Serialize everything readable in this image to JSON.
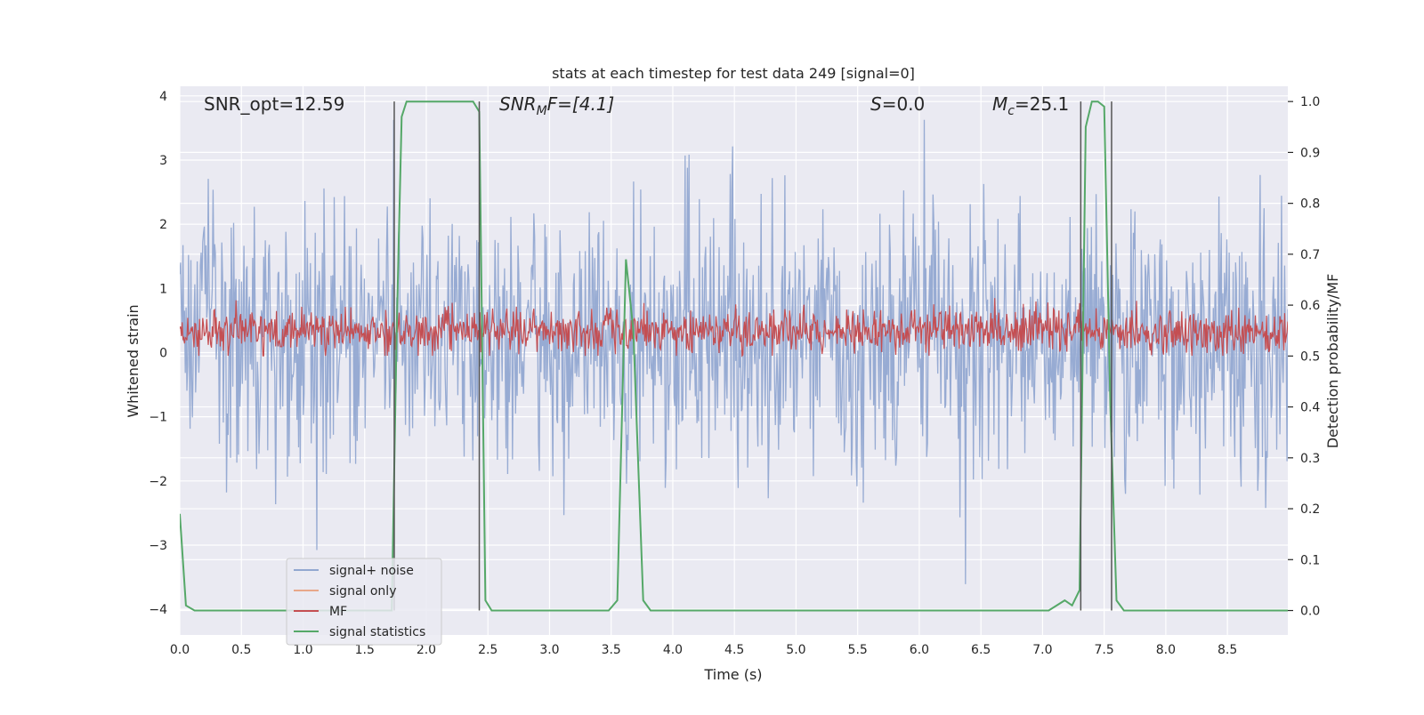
{
  "chart_data": {
    "type": "line",
    "title": "stats at each timestep for test data 249 [signal=0]",
    "xlabel": "Time (s)",
    "ylabel_left": "Whitened strain",
    "ylabel_right": "Detection probability/MF",
    "xlim": [
      0,
      8.99
    ],
    "ylim_left": [
      -4.4,
      4.15
    ],
    "ylim_right": [
      -0.048,
      1.03
    ],
    "grid": true,
    "legend_placement": "lower-left",
    "x_ticks": [
      0.0,
      0.5,
      1.0,
      1.5,
      2.0,
      2.5,
      3.0,
      3.5,
      4.0,
      4.5,
      5.0,
      5.5,
      6.0,
      6.5,
      7.0,
      7.5,
      8.0,
      8.5
    ],
    "x_tick_labels": [
      "0.0",
      "0.5",
      "1.0",
      "1.5",
      "2.0",
      "2.5",
      "3.0",
      "3.5",
      "4.0",
      "4.5",
      "5.0",
      "5.5",
      "6.0",
      "6.5",
      "7.0",
      "7.5",
      "8.0",
      "8.5"
    ],
    "y_ticks_left": [
      4,
      3,
      2,
      1,
      0,
      -1,
      -2,
      -3,
      -4
    ],
    "y_tick_labels_left": [
      "4",
      "3",
      "2",
      "1",
      "0",
      "−1",
      "−2",
      "−3",
      "−4"
    ],
    "y_ticks_right": [
      1.0,
      0.9,
      0.8,
      0.7,
      0.6,
      0.5,
      0.4,
      0.3,
      0.2,
      0.1,
      0.0
    ],
    "y_tick_labels_right": [
      "1.0",
      "0.9",
      "0.8",
      "0.7",
      "0.6",
      "0.5",
      "0.4",
      "0.3",
      "0.2",
      "0.1",
      "0.0"
    ],
    "annotations": {
      "snr_opt": "SNR_opt=12.59",
      "snr_mf_main": "SNR",
      "snr_mf_sub": "M",
      "snr_mf_rest": "F=[4.1]",
      "s_main": "S",
      "s_rest": "=0.0",
      "mc_main": "M",
      "mc_sub": "c",
      "mc_rest": "=25.1"
    },
    "vertical_lines_x": [
      1.74,
      2.43,
      7.31,
      7.56
    ],
    "series": [
      {
        "name": "signal+ noise",
        "color": "#92a8d1",
        "kind": "noise band",
        "x_range": [
          0,
          8.99
        ],
        "typical_range": [
          -2.2,
          2.3
        ],
        "extremes": [
          -4.0,
          3.8
        ]
      },
      {
        "name": "signal only",
        "color": "#e8a88a",
        "kind": "line",
        "x": [],
        "y": []
      },
      {
        "name": "MF",
        "color": "#c44e52",
        "kind": "noise band",
        "x_range": [
          0,
          8.99
        ],
        "typical_range": [
          0.05,
          0.65
        ],
        "extremes": [
          -0.05,
          1.0
        ]
      },
      {
        "name": "signal statistics",
        "color": "#55a868",
        "kind": "line",
        "axis": "right",
        "x": [
          0.0,
          0.05,
          0.12,
          1.72,
          1.76,
          1.8,
          1.84,
          1.9,
          2.38,
          2.43,
          2.48,
          2.53,
          3.48,
          3.55,
          3.62,
          3.68,
          3.76,
          3.82,
          7.05,
          7.18,
          7.24,
          7.3,
          7.35,
          7.4,
          7.45,
          7.5,
          7.55,
          7.6,
          7.66,
          7.72,
          8.99
        ],
        "y": [
          0.19,
          0.01,
          0.0,
          0.0,
          0.55,
          0.97,
          1.0,
          1.0,
          1.0,
          0.98,
          0.02,
          0.0,
          0.0,
          0.02,
          0.69,
          0.55,
          0.02,
          0.0,
          0.0,
          0.02,
          0.01,
          0.04,
          0.95,
          1.0,
          1.0,
          0.99,
          0.4,
          0.02,
          0.0,
          0.0,
          0.0
        ]
      }
    ]
  }
}
